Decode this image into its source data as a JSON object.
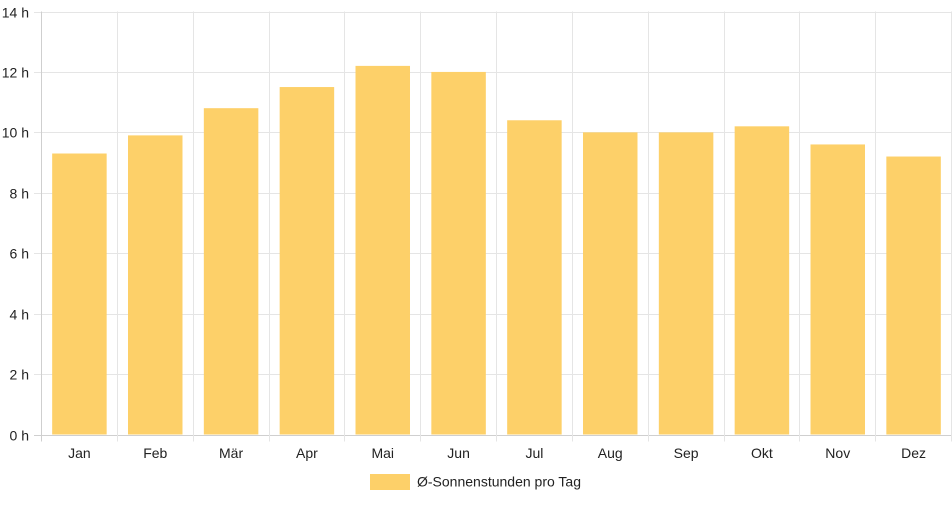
{
  "chart_data": {
    "type": "bar",
    "categories": [
      "Jan",
      "Feb",
      "Mär",
      "Apr",
      "Mai",
      "Jun",
      "Jul",
      "Aug",
      "Sep",
      "Okt",
      "Nov",
      "Dez"
    ],
    "series": [
      {
        "name": "Ø-Sonnenstunden pro Tag",
        "values": [
          9.3,
          9.9,
          10.8,
          11.5,
          12.2,
          12.0,
          10.4,
          10.0,
          10.0,
          10.2,
          9.6,
          9.2
        ]
      }
    ],
    "ylim": [
      0,
      14
    ],
    "yticks": [
      0,
      2,
      4,
      6,
      8,
      10,
      12,
      14
    ],
    "ytick_labels": [
      "0 h",
      "2 h",
      "4 h",
      "6 h",
      "8 h",
      "10 h",
      "12 h",
      "14 h"
    ],
    "grid": true,
    "legend": "bottom",
    "colors": {
      "bar_fill": "#fdd069",
      "grid": "#e5e5e5",
      "axis": "#cfcfcf",
      "text": "#222222"
    }
  }
}
